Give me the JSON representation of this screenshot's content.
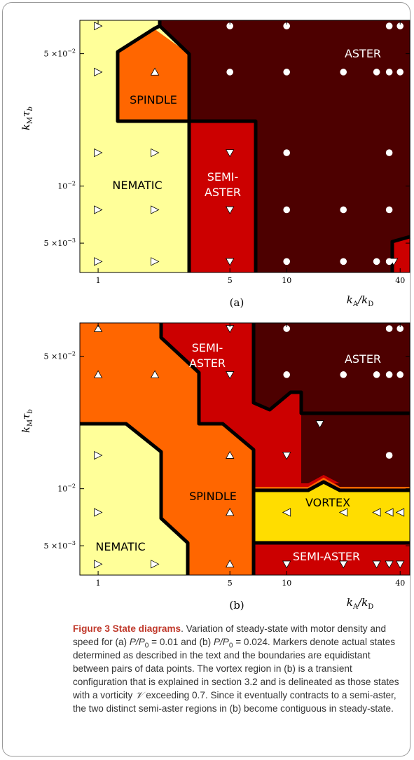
{
  "figure": {
    "title": "Figure 3 State diagrams",
    "caption_parts": {
      "p1": ". Variation of steady-state with motor density and speed for (a) ",
      "v1": "= 0.01 and (b) ",
      "v2": "= 0.024. Markers denote actual states determined as described in the text and the boundaries are equidistant between pairs of data points. The vortex region in (b) is a transient configuration that is explained in section 3.2 and is delineated as those states with a vorticity ",
      "v3": " exceeding 0.7. Since it eventually contracts to a semi-aster, the two distinct semi-aster regions in (b) become contiguous in steady-state.",
      "ratio_P": "P/P",
      "ratio_sub": "0",
      "vorticity_symbol": "𝒱"
    }
  },
  "chart_data": [
    {
      "type": "heatmap",
      "panel": "(a)",
      "x_axis": {
        "label": "kA/kD",
        "scale": "log",
        "range": [
          0.8,
          45
        ],
        "ticks": [
          "1",
          "5",
          "10",
          "40"
        ],
        "tick_values": [
          1,
          5,
          10,
          40
        ]
      },
      "y_axis": {
        "label": "kMτb",
        "scale": "log",
        "range": [
          0.0035,
          0.075
        ],
        "ticks": [
          "5 ×10−2",
          "10−2",
          "5 ×10−3"
        ],
        "tick_values": [
          0.05,
          0.01,
          0.005
        ]
      },
      "regions": [
        {
          "name": "NEMATIC",
          "color": "#ffff99"
        },
        {
          "name": "SPINDLE",
          "color": "#ff6600"
        },
        {
          "name": "SEMI-ASTER",
          "color": "#cc0000"
        },
        {
          "name": "ASTER",
          "color": "#4d0000"
        }
      ],
      "markers": [
        {
          "x": 1,
          "y": 0.07,
          "state": "nematic",
          "symbol": "triangle-right"
        },
        {
          "x": 1,
          "y": 0.04,
          "state": "nematic",
          "symbol": "triangle-right"
        },
        {
          "x": 1,
          "y": 0.015,
          "state": "nematic",
          "symbol": "triangle-right"
        },
        {
          "x": 1,
          "y": 0.0075,
          "state": "nematic",
          "symbol": "triangle-right"
        },
        {
          "x": 1,
          "y": 0.004,
          "state": "nematic",
          "symbol": "triangle-right"
        },
        {
          "x": 2,
          "y": 0.015,
          "state": "nematic",
          "symbol": "triangle-right"
        },
        {
          "x": 2,
          "y": 0.0075,
          "state": "nematic",
          "symbol": "triangle-right"
        },
        {
          "x": 2,
          "y": 0.004,
          "state": "nematic",
          "symbol": "triangle-right"
        },
        {
          "x": 2,
          "y": 0.04,
          "state": "spindle",
          "symbol": "triangle-up"
        },
        {
          "x": 5,
          "y": 0.015,
          "state": "semi-aster",
          "symbol": "triangle-down"
        },
        {
          "x": 5,
          "y": 0.0075,
          "state": "semi-aster",
          "symbol": "triangle-down"
        },
        {
          "x": 5,
          "y": 0.004,
          "state": "semi-aster",
          "symbol": "triangle-down"
        },
        {
          "x": 37,
          "y": 0.004,
          "state": "semi-aster",
          "symbol": "triangle-down"
        },
        {
          "x": 5,
          "y": 0.07,
          "state": "aster",
          "symbol": "circle"
        },
        {
          "x": 5,
          "y": 0.04,
          "state": "aster",
          "symbol": "circle"
        },
        {
          "x": 10,
          "y": 0.07,
          "state": "aster",
          "symbol": "circle"
        },
        {
          "x": 10,
          "y": 0.04,
          "state": "aster",
          "symbol": "circle"
        },
        {
          "x": 10,
          "y": 0.015,
          "state": "aster",
          "symbol": "circle"
        },
        {
          "x": 10,
          "y": 0.0075,
          "state": "aster",
          "symbol": "circle"
        },
        {
          "x": 10,
          "y": 0.004,
          "state": "aster",
          "symbol": "circle"
        },
        {
          "x": 20,
          "y": 0.04,
          "state": "aster",
          "symbol": "circle"
        },
        {
          "x": 20,
          "y": 0.0075,
          "state": "aster",
          "symbol": "circle"
        },
        {
          "x": 20,
          "y": 0.004,
          "state": "aster",
          "symbol": "circle"
        },
        {
          "x": 30,
          "y": 0.04,
          "state": "aster",
          "symbol": "circle"
        },
        {
          "x": 30,
          "y": 0.004,
          "state": "aster",
          "symbol": "circle"
        },
        {
          "x": 35,
          "y": 0.07,
          "state": "aster",
          "symbol": "circle"
        },
        {
          "x": 35,
          "y": 0.04,
          "state": "aster",
          "symbol": "circle"
        },
        {
          "x": 35,
          "y": 0.015,
          "state": "aster",
          "symbol": "circle"
        },
        {
          "x": 35,
          "y": 0.0075,
          "state": "aster",
          "symbol": "circle"
        },
        {
          "x": 35,
          "y": 0.004,
          "state": "aster",
          "symbol": "circle"
        },
        {
          "x": 40,
          "y": 0.07,
          "state": "aster",
          "symbol": "circle"
        },
        {
          "x": 40,
          "y": 0.04,
          "state": "aster",
          "symbol": "circle"
        }
      ]
    },
    {
      "type": "heatmap",
      "panel": "(b)",
      "x_axis": {
        "label": "kA/kD",
        "scale": "log",
        "range": [
          0.8,
          45
        ],
        "ticks": [
          "1",
          "5",
          "10",
          "40"
        ],
        "tick_values": [
          1,
          5,
          10,
          40
        ]
      },
      "y_axis": {
        "label": "kMτb",
        "scale": "log",
        "range": [
          0.0035,
          0.075
        ],
        "ticks": [
          "5 ×10−2",
          "10−2",
          "5 ×10−3"
        ],
        "tick_values": [
          0.05,
          0.01,
          0.005
        ]
      },
      "regions": [
        {
          "name": "SEMI-ASTER",
          "color": "#cc0000"
        },
        {
          "name": "ASTER",
          "color": "#4d0000"
        },
        {
          "name": "SPINDLE",
          "color": "#ff6600"
        },
        {
          "name": "NEMATIC",
          "color": "#ffff99"
        },
        {
          "name": "VORTEX",
          "color": "#ffdd00"
        },
        {
          "name": "SEMI-ASTER",
          "color": "#cc0000"
        }
      ],
      "markers": [
        {
          "x": 1,
          "y": 0.07,
          "state": "spindle",
          "symbol": "triangle-up"
        },
        {
          "x": 1,
          "y": 0.04,
          "state": "spindle",
          "symbol": "triangle-up"
        },
        {
          "x": 2,
          "y": 0.04,
          "state": "spindle",
          "symbol": "triangle-up"
        },
        {
          "x": 5,
          "y": 0.015,
          "state": "spindle",
          "symbol": "triangle-up"
        },
        {
          "x": 5,
          "y": 0.0075,
          "state": "spindle",
          "symbol": "triangle-up"
        },
        {
          "x": 5,
          "y": 0.004,
          "state": "spindle",
          "symbol": "triangle-up"
        },
        {
          "x": 1,
          "y": 0.015,
          "state": "nematic",
          "symbol": "triangle-right"
        },
        {
          "x": 1,
          "y": 0.0075,
          "state": "nematic",
          "symbol": "triangle-right"
        },
        {
          "x": 1,
          "y": 0.004,
          "state": "nematic",
          "symbol": "triangle-right"
        },
        {
          "x": 2,
          "y": 0.004,
          "state": "nematic",
          "symbol": "triangle-right"
        },
        {
          "x": 5,
          "y": 0.07,
          "state": "semi-aster",
          "symbol": "triangle-down"
        },
        {
          "x": 5,
          "y": 0.04,
          "state": "semi-aster",
          "symbol": "triangle-down"
        },
        {
          "x": 15,
          "y": 0.022,
          "state": "semi-aster",
          "symbol": "triangle-down"
        },
        {
          "x": 10,
          "y": 0.015,
          "state": "semi-aster",
          "symbol": "triangle-down"
        },
        {
          "x": 10,
          "y": 0.004,
          "state": "semi-aster",
          "symbol": "triangle-down"
        },
        {
          "x": 20,
          "y": 0.004,
          "state": "semi-aster",
          "symbol": "triangle-down"
        },
        {
          "x": 30,
          "y": 0.004,
          "state": "semi-aster",
          "symbol": "triangle-down"
        },
        {
          "x": 35,
          "y": 0.004,
          "state": "semi-aster",
          "symbol": "triangle-down"
        },
        {
          "x": 40,
          "y": 0.004,
          "state": "semi-aster",
          "symbol": "triangle-down"
        },
        {
          "x": 10,
          "y": 0.0075,
          "state": "vortex",
          "symbol": "triangle-left"
        },
        {
          "x": 20,
          "y": 0.0075,
          "state": "vortex",
          "symbol": "triangle-left"
        },
        {
          "x": 30,
          "y": 0.0075,
          "state": "vortex",
          "symbol": "triangle-left"
        },
        {
          "x": 35,
          "y": 0.0075,
          "state": "vortex",
          "symbol": "triangle-left"
        },
        {
          "x": 40,
          "y": 0.0075,
          "state": "vortex",
          "symbol": "triangle-left"
        },
        {
          "x": 10,
          "y": 0.07,
          "state": "aster",
          "symbol": "circle"
        },
        {
          "x": 10,
          "y": 0.04,
          "state": "aster",
          "symbol": "circle"
        },
        {
          "x": 20,
          "y": 0.04,
          "state": "aster",
          "symbol": "circle"
        },
        {
          "x": 30,
          "y": 0.04,
          "state": "aster",
          "symbol": "circle"
        },
        {
          "x": 35,
          "y": 0.07,
          "state": "aster",
          "symbol": "circle"
        },
        {
          "x": 35,
          "y": 0.04,
          "state": "aster",
          "symbol": "circle"
        },
        {
          "x": 35,
          "y": 0.015,
          "state": "aster",
          "symbol": "circle"
        },
        {
          "x": 40,
          "y": 0.07,
          "state": "aster",
          "symbol": "circle"
        },
        {
          "x": 40,
          "y": 0.04,
          "state": "aster",
          "symbol": "circle"
        }
      ]
    }
  ]
}
